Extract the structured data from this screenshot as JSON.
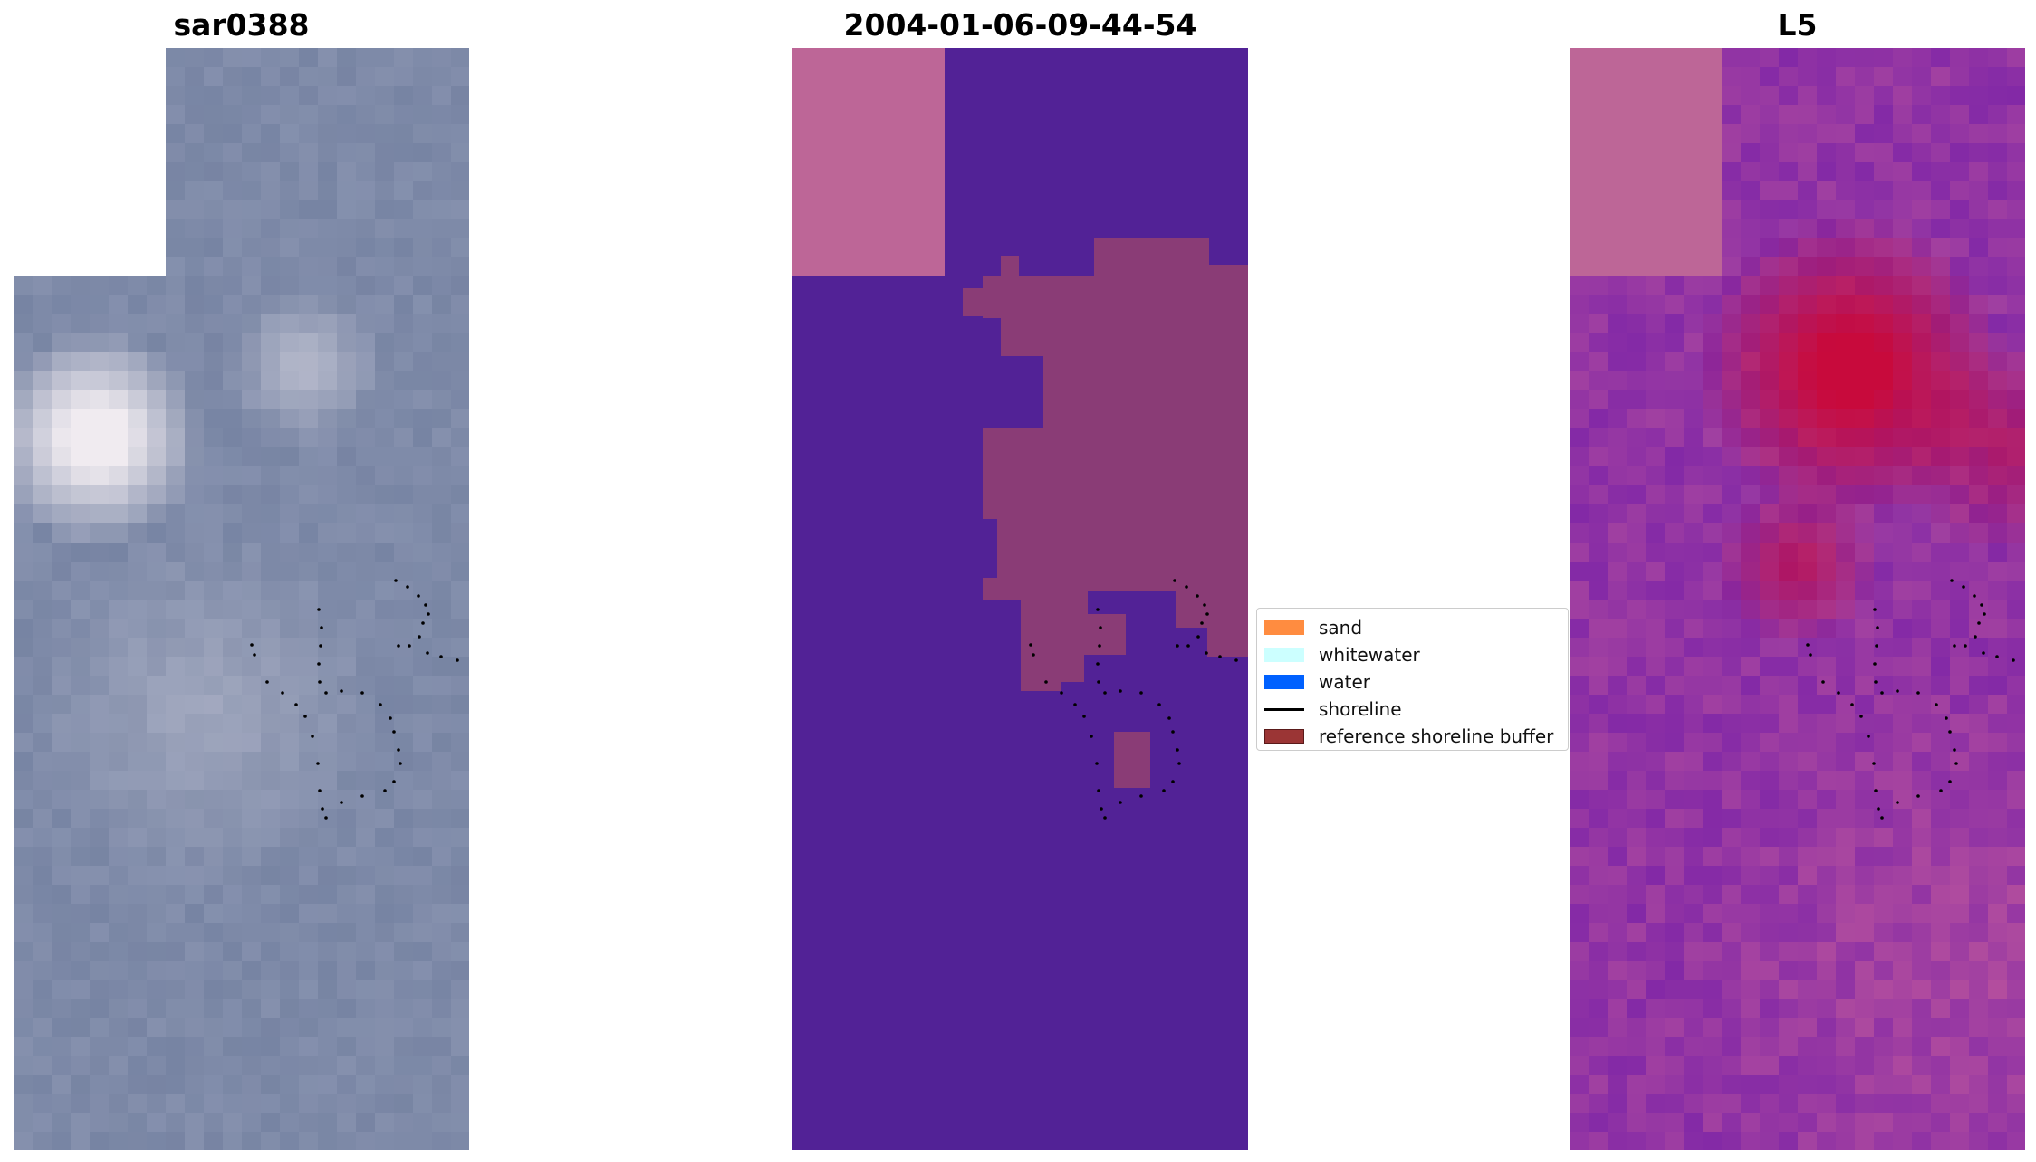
{
  "panels": {
    "left": {
      "title": "sar0388"
    },
    "middle": {
      "title": "2004-01-06-09-44-54"
    },
    "right": {
      "title": "L5"
    }
  },
  "legend": {
    "items": [
      {
        "label": "sand",
        "color": "#ff8c40",
        "kind": "patch"
      },
      {
        "label": "whitewater",
        "color": "#ccffff",
        "kind": "patch"
      },
      {
        "label": "water",
        "color": "#0061ff",
        "kind": "patch"
      },
      {
        "label": "shoreline",
        "color": "#000000",
        "kind": "line"
      },
      {
        "label": "reference shoreline buffer",
        "color": "#9b3535",
        "kind": "patch"
      }
    ]
  },
  "colors": {
    "classified_background": "#522296",
    "no_data_pink": "#bd6697",
    "buffer": "#8a3c76",
    "ndwi_low": "#6a0ea8",
    "ndwi_high": "#c3073e",
    "rgb_base": "#7e8aa8"
  }
}
